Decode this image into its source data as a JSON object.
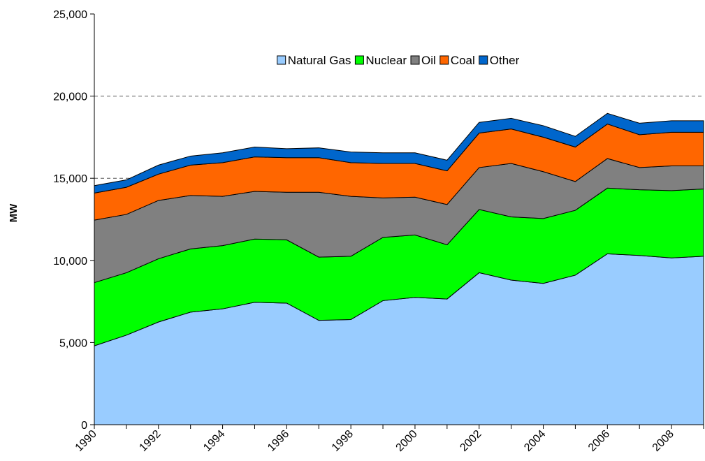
{
  "chart_data": {
    "type": "stacked_area",
    "y_label": "MW",
    "categories": [
      "1990",
      null,
      "1992",
      null,
      "1994",
      null,
      "1996",
      null,
      "1998",
      null,
      "2000",
      null,
      "2002",
      null,
      "2004",
      null,
      "2006",
      null,
      "2008",
      null
    ],
    "series": [
      {
        "name": "Natural Gas",
        "color": "#99ccff",
        "values": [
          4800,
          5450,
          6250,
          6850,
          7050,
          7450,
          7400,
          6350,
          6400,
          7550,
          7750,
          7650,
          9250,
          8800,
          8600,
          9100,
          10400,
          10300,
          10150,
          10250
        ]
      },
      {
        "name": "Nuclear",
        "color": "#00ff00",
        "values": [
          3850,
          3800,
          3850,
          3850,
          3850,
          3850,
          3850,
          3850,
          3850,
          3850,
          3800,
          3300,
          3850,
          3850,
          3950,
          3950,
          4000,
          4000,
          4100,
          4100
        ]
      },
      {
        "name": "Oil",
        "color": "#808080",
        "values": [
          3800,
          3550,
          3550,
          3250,
          3000,
          2900,
          2900,
          3950,
          3650,
          2400,
          2300,
          2450,
          2550,
          3250,
          2850,
          1750,
          1800,
          1350,
          1500,
          1400
        ]
      },
      {
        "name": "Coal",
        "color": "#ff6600",
        "values": [
          1650,
          1650,
          1600,
          1850,
          2050,
          2100,
          2100,
          2100,
          2050,
          2100,
          2050,
          2050,
          2100,
          2100,
          2100,
          2100,
          2100,
          2000,
          2050,
          2050
        ]
      },
      {
        "name": "Other",
        "color": "#0066cc",
        "values": [
          450,
          450,
          550,
          550,
          600,
          600,
          550,
          600,
          650,
          650,
          650,
          650,
          650,
          650,
          700,
          650,
          650,
          700,
          700,
          700
        ]
      }
    ],
    "ylim": [
      0,
      25000
    ],
    "yticks": [
      {
        "value": 0,
        "label": "0"
      },
      {
        "value": 5000,
        "label": "5,000"
      },
      {
        "value": 10000,
        "label": "10,000"
      },
      {
        "value": 15000,
        "label": "15,000"
      },
      {
        "value": 20000,
        "label": "20,000"
      },
      {
        "value": 25000,
        "label": "25,000"
      }
    ],
    "grid": true,
    "legend": "top"
  }
}
